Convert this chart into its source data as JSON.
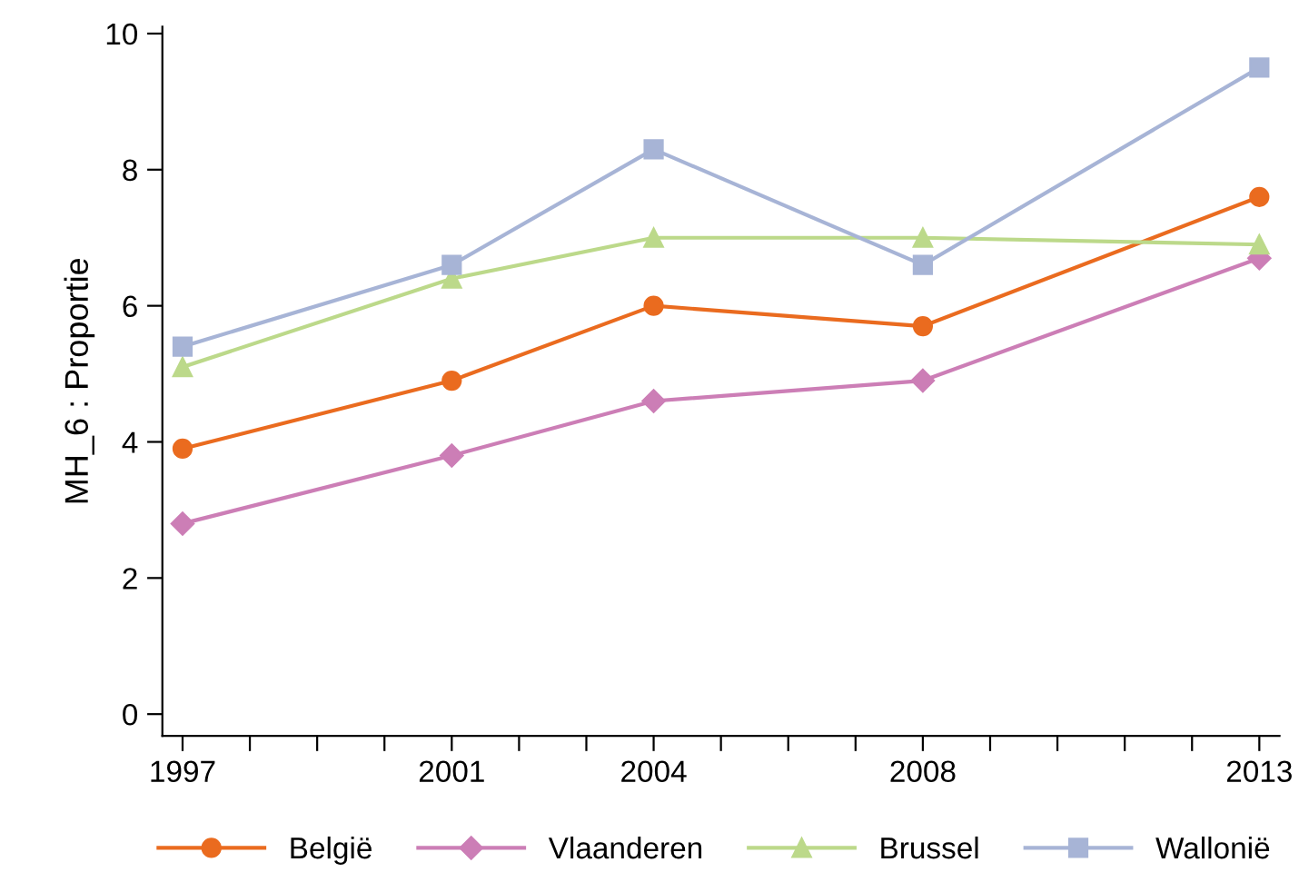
{
  "chart_data": {
    "type": "line",
    "ylabel": "MH_6 : Proportie",
    "x": [
      1997,
      2001,
      2004,
      2008,
      2013
    ],
    "series": [
      {
        "name": "België",
        "color": "#ea6b1f",
        "marker": "circle",
        "values": [
          3.9,
          4.9,
          6.0,
          5.7,
          7.6
        ]
      },
      {
        "name": "Vlaanderen",
        "color": "#cc7eb6",
        "marker": "diamond",
        "values": [
          2.8,
          3.8,
          4.6,
          4.9,
          6.7
        ]
      },
      {
        "name": "Brussel",
        "color": "#bcd98a",
        "marker": "triangle",
        "values": [
          5.1,
          6.4,
          7.0,
          7.0,
          6.9
        ]
      },
      {
        "name": "Wallonië",
        "color": "#a7b4d6",
        "marker": "square",
        "values": [
          5.4,
          6.6,
          8.3,
          6.6,
          9.5
        ]
      }
    ],
    "xlim": [
      1996.7,
      2013.3
    ],
    "ylim": [
      -0.32,
      10.1
    ],
    "xticks": [
      1997,
      {
        "value": 1998,
        "label": null
      },
      {
        "value": 1999,
        "label": null
      },
      {
        "value": 2000,
        "label": null
      },
      2001,
      {
        "value": 2002,
        "label": null
      },
      {
        "value": 2003,
        "label": null
      },
      2004,
      {
        "value": 2005,
        "label": null
      },
      {
        "value": 2006,
        "label": null
      },
      {
        "value": 2007,
        "label": null
      },
      2008,
      {
        "value": 2009,
        "label": null
      },
      {
        "value": 2010,
        "label": null
      },
      {
        "value": 2011,
        "label": null
      },
      {
        "value": 2012,
        "label": null
      },
      2013
    ],
    "yticks": [
      0,
      2,
      4,
      6,
      8,
      10
    ],
    "grid": false,
    "legend": "bottom",
    "line_style": "solid"
  }
}
